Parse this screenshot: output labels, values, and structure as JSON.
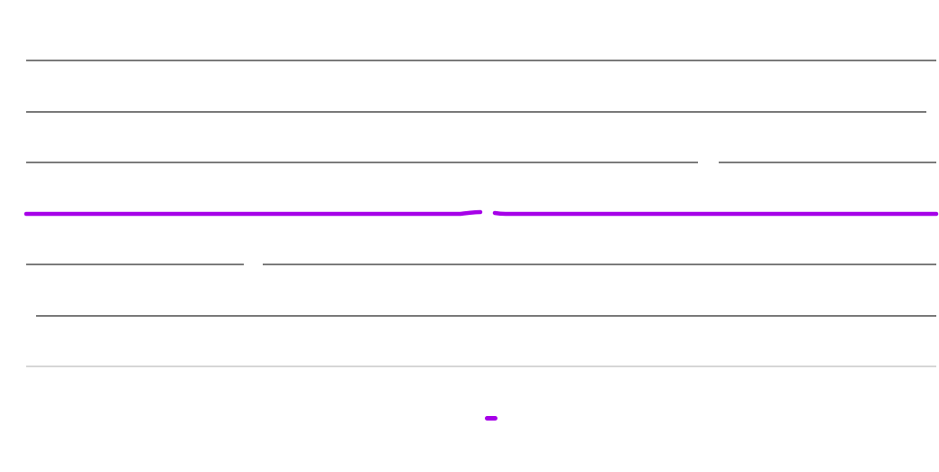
{
  "colors": {
    "background": "#ffffff",
    "line": "#2b2b2b",
    "line_faint": "#bdbdbd",
    "accent": "#a600e8"
  },
  "lines": [
    {
      "kind": "plain",
      "color": "line"
    },
    {
      "kind": "plain",
      "color": "line"
    },
    {
      "kind": "plain",
      "color": "line"
    },
    {
      "kind": "highlighted",
      "color": "accent"
    },
    {
      "kind": "plain",
      "color": "line"
    },
    {
      "kind": "plain",
      "color": "line"
    },
    {
      "kind": "faint",
      "color": "line_faint"
    }
  ],
  "marker": {
    "color": "accent"
  }
}
